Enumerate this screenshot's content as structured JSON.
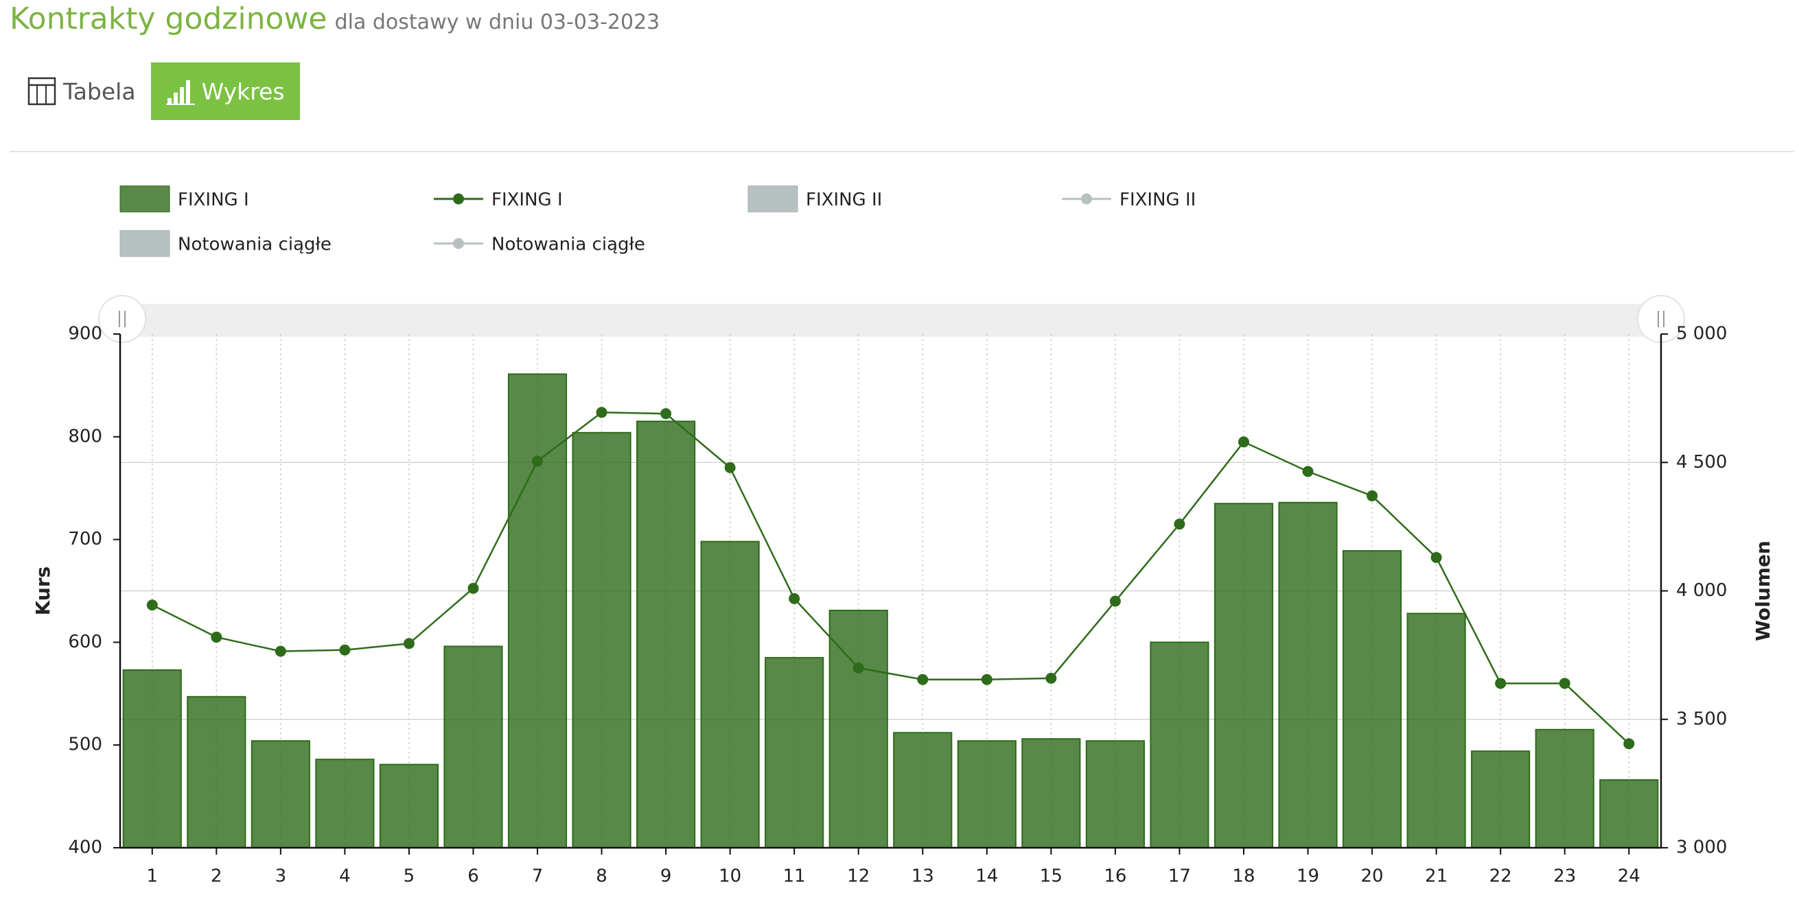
{
  "header": {
    "title": "Kontrakty godzinowe",
    "subtitle": "dla dostawy w dniu 03-03-2023"
  },
  "tabs": [
    {
      "label": "Tabela",
      "icon": "table-icon",
      "active": false
    },
    {
      "label": "Wykres",
      "icon": "bar-chart-icon",
      "active": true
    }
  ],
  "colors": {
    "accent": "#7bc142",
    "title": "#7cb342",
    "fixing1": "#2e6b1a",
    "fixing2": "#b8c1c1",
    "ciagle": "#b8c1c1",
    "scrollbar": "#eeeeee"
  },
  "chart_data": {
    "type": "bar",
    "legend": [
      {
        "label": "FIXING I",
        "kind": "bar",
        "color": "#2e6b1a"
      },
      {
        "label": "FIXING I",
        "kind": "line",
        "color": "#2e6b1a"
      },
      {
        "label": "FIXING II",
        "kind": "bar",
        "color": "#b8c1c1"
      },
      {
        "label": "FIXING II",
        "kind": "line",
        "color": "#b8c1c1"
      },
      {
        "label": "Notowania ciągłe",
        "kind": "bar",
        "color": "#b8c1c1"
      },
      {
        "label": "Notowania ciągłe",
        "kind": "line",
        "color": "#b8c1c1"
      }
    ],
    "legend_position": "top",
    "categories": [
      "1",
      "2",
      "3",
      "4",
      "5",
      "6",
      "7",
      "8",
      "9",
      "10",
      "11",
      "12",
      "13",
      "14",
      "15",
      "16",
      "17",
      "18",
      "19",
      "20",
      "21",
      "22",
      "23",
      "24"
    ],
    "y_left": {
      "label": "Kurs",
      "range": [
        400,
        900
      ],
      "ticks": [
        "400",
        "500",
        "600",
        "700",
        "800",
        "900"
      ]
    },
    "y_right": {
      "label": "Wolumen",
      "range": [
        3000,
        5000
      ],
      "ticks": [
        "3 000",
        "3 500",
        "4 000",
        "4 500",
        "5 000"
      ]
    },
    "series": [
      {
        "name": "FIXING I",
        "kind": "bar",
        "axis": "left",
        "values": [
          573,
          547,
          504,
          486,
          481,
          596,
          861,
          804,
          815,
          698,
          585,
          631,
          512,
          504,
          506,
          504,
          600,
          735,
          736,
          689,
          628,
          494,
          515,
          466
        ]
      },
      {
        "name": "FIXING I",
        "kind": "line",
        "axis": "right",
        "values": [
          3945,
          3820,
          3765,
          3770,
          3795,
          4010,
          4505,
          4695,
          4690,
          4480,
          3970,
          3700,
          3655,
          3655,
          3660,
          3960,
          4260,
          4580,
          4465,
          4370,
          4130,
          3640,
          3640,
          3405
        ]
      }
    ],
    "grid": {
      "vertical": "dotted",
      "horizontal_right": true
    }
  }
}
